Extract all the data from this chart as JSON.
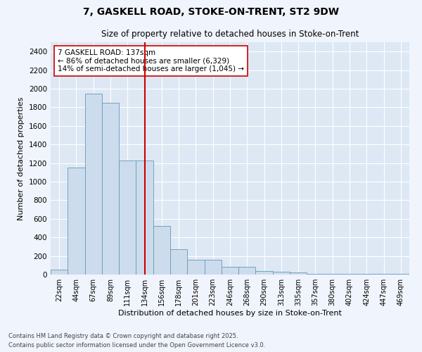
{
  "title1": "7, GASKELL ROAD, STOKE-ON-TRENT, ST2 9DW",
  "title2": "Size of property relative to detached houses in Stoke-on-Trent",
  "xlabel": "Distribution of detached houses by size in Stoke-on-Trent",
  "ylabel": "Number of detached properties",
  "categories": [
    "22sqm",
    "44sqm",
    "67sqm",
    "89sqm",
    "111sqm",
    "134sqm",
    "156sqm",
    "178sqm",
    "201sqm",
    "223sqm",
    "246sqm",
    "268sqm",
    "290sqm",
    "313sqm",
    "335sqm",
    "357sqm",
    "380sqm",
    "402sqm",
    "424sqm",
    "447sqm",
    "469sqm"
  ],
  "values": [
    50,
    1150,
    1950,
    1850,
    1225,
    1225,
    520,
    270,
    160,
    160,
    80,
    80,
    40,
    30,
    25,
    10,
    8,
    8,
    4,
    4,
    8
  ],
  "bar_color": "#ccdcec",
  "bar_edgecolor": "#6699bb",
  "vline_x_index": 5,
  "vline_color": "#cc0000",
  "annotation_text": "7 GASKELL ROAD: 137sqm\n← 86% of detached houses are smaller (6,329)\n14% of semi-detached houses are larger (1,045) →",
  "annotation_box_edgecolor": "#cc0000",
  "annotation_box_facecolor": "#ffffff",
  "ylim": [
    0,
    2500
  ],
  "yticks": [
    0,
    200,
    400,
    600,
    800,
    1000,
    1200,
    1400,
    1600,
    1800,
    2000,
    2200,
    2400
  ],
  "footnote1": "Contains HM Land Registry data © Crown copyright and database right 2025.",
  "footnote2": "Contains public sector information licensed under the Open Government Licence v3.0.",
  "fig_facecolor": "#f0f4fc",
  "plot_bg_color": "#dde8f4"
}
